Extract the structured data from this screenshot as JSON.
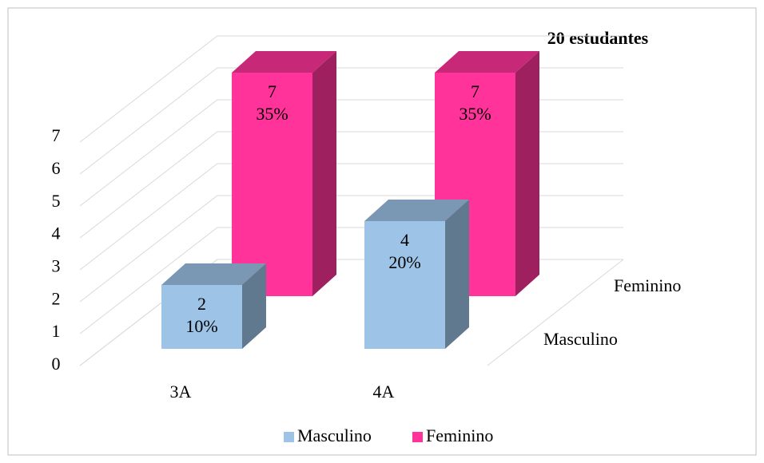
{
  "chart_data": {
    "type": "bar3d",
    "title": "20 estudantes",
    "categories": [
      "3A",
      "4A"
    ],
    "series": [
      {
        "name": "Masculino",
        "color": "#9dc3e6",
        "values": [
          2,
          4
        ],
        "percent_labels": [
          "10%",
          "20%"
        ]
      },
      {
        "name": "Feminino",
        "color": "#ff3399",
        "values": [
          7,
          7
        ],
        "percent_labels": [
          "35%",
          "35%"
        ]
      }
    ],
    "ylim": [
      0,
      7
    ],
    "yticks": [
      0,
      1,
      2,
      3,
      4,
      5,
      6,
      7
    ],
    "grid": true,
    "legend": "bottom"
  }
}
